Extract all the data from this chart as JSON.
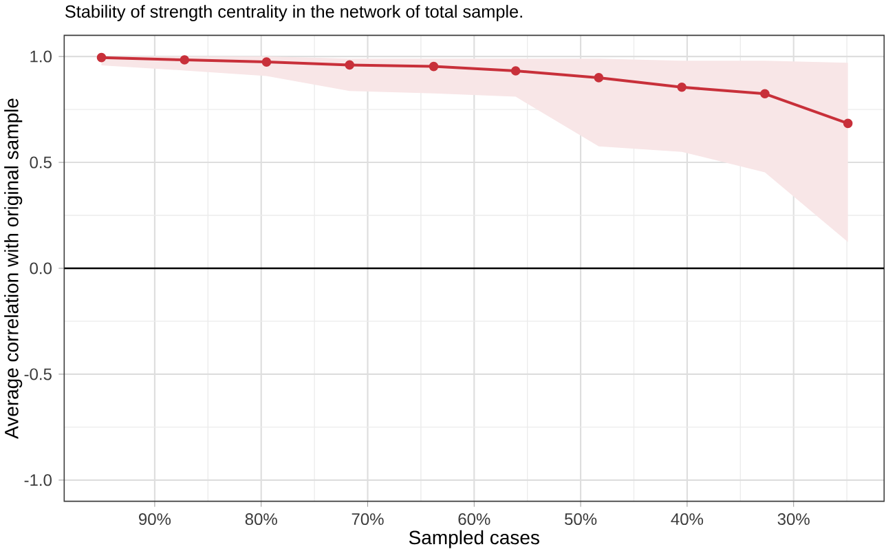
{
  "chart_data": {
    "type": "line",
    "title": "Stability of strength centrality in the network of total sample.",
    "xlabel": "Sampled cases",
    "ylabel": "Average correlation with original sample",
    "x": [
      95,
      87.2,
      79.5,
      71.7,
      63.8,
      56.1,
      48.3,
      40.5,
      32.7,
      24.9
    ],
    "series": [
      {
        "color": "#c8303a",
        "values": [
          0.995,
          0.984,
          0.974,
          0.96,
          0.953,
          0.932,
          0.9,
          0.855,
          0.824,
          0.684
        ],
        "lower": [
          0.958,
          0.934,
          0.908,
          0.837,
          0.826,
          0.81,
          0.576,
          0.55,
          0.453,
          0.124
        ],
        "upper": [
          1.0,
          1.0,
          1.0,
          0.99,
          0.99,
          0.99,
          0.99,
          0.98,
          0.98,
          0.97
        ]
      }
    ],
    "xlim": [
      98.5,
      21.5
    ],
    "ylim": [
      -1.1,
      1.1
    ],
    "xticks": [
      {
        "value": 90,
        "label": "90%"
      },
      {
        "value": 80,
        "label": "80%"
      },
      {
        "value": 70,
        "label": "70%"
      },
      {
        "value": 60,
        "label": "60%"
      },
      {
        "value": 50,
        "label": "50%"
      },
      {
        "value": 40,
        "label": "40%"
      },
      {
        "value": 30,
        "label": "30%"
      },
      {
        "value": 85,
        "label": null
      },
      {
        "value": 75,
        "label": null
      },
      {
        "value": 65,
        "label": null
      },
      {
        "value": 55,
        "label": null
      },
      {
        "value": 45,
        "label": null
      },
      {
        "value": 35,
        "label": null
      },
      {
        "value": 25,
        "label": null
      }
    ],
    "yticks": [
      {
        "value": -1,
        "label": "-1.0"
      },
      {
        "value": -0.5,
        "label": "-0.5"
      },
      {
        "value": 0,
        "label": "0.0"
      },
      {
        "value": 0.5,
        "label": "0.5"
      },
      {
        "value": 1,
        "label": "1.0"
      },
      {
        "value": -0.75,
        "label": null
      },
      {
        "value": -0.25,
        "label": null
      },
      {
        "value": 0.25,
        "label": null
      },
      {
        "value": 0.75,
        "label": null
      }
    ],
    "ref_lines": [
      {
        "axis": "y",
        "value": 0,
        "color": "#000000",
        "line_style": "solid"
      }
    ],
    "grid": true,
    "marker": "circle",
    "line_style": "solid"
  }
}
